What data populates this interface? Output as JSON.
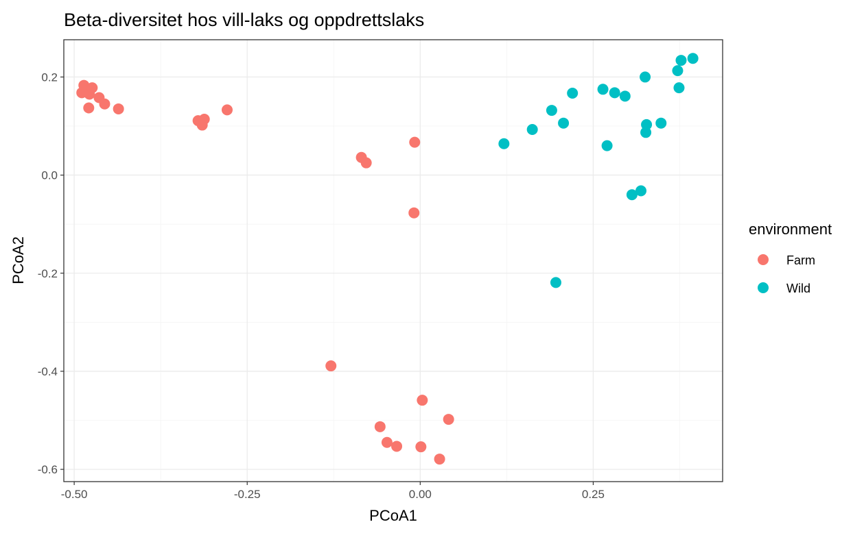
{
  "chart_data": {
    "type": "scatter",
    "title": "Beta-diversitet hos vill-laks og oppdrettslaks",
    "xlabel": "PCoA1",
    "ylabel": "PCoA2",
    "xlim": [
      -0.515,
      0.437
    ],
    "ylim": [
      -0.625,
      0.276
    ],
    "x_ticks": [
      -0.5,
      -0.25,
      0.0,
      0.25
    ],
    "x_tick_labels": [
      "-0.50",
      "-0.25",
      "0.00",
      "0.25"
    ],
    "y_ticks": [
      0.2,
      0.0,
      -0.2,
      -0.4,
      -0.6
    ],
    "y_tick_labels": [
      "0.2",
      "0.0",
      "-0.2",
      "-0.4",
      "-0.6"
    ],
    "x_minor": [
      -0.375,
      -0.125,
      0.125,
      0.375
    ],
    "y_minor": [
      0.1,
      -0.1,
      -0.3,
      -0.5
    ],
    "grid": true,
    "legend": {
      "title": "environment",
      "position": "right"
    },
    "series": [
      {
        "name": "Farm",
        "color": "#F8766D",
        "points": [
          [
            -0.486,
            0.183
          ],
          [
            -0.489,
            0.168
          ],
          [
            -0.482,
            0.172
          ],
          [
            -0.478,
            0.165
          ],
          [
            -0.474,
            0.178
          ],
          [
            -0.464,
            0.158
          ],
          [
            -0.456,
            0.145
          ],
          [
            -0.479,
            0.137
          ],
          [
            -0.436,
            0.135
          ],
          [
            -0.321,
            0.111
          ],
          [
            -0.317,
            0.108
          ],
          [
            -0.312,
            0.114
          ],
          [
            -0.315,
            0.102
          ],
          [
            -0.279,
            0.133
          ],
          [
            -0.008,
            0.067
          ],
          [
            -0.085,
            0.036
          ],
          [
            -0.078,
            0.025
          ],
          [
            -0.009,
            -0.077
          ],
          [
            -0.129,
            -0.389
          ],
          [
            0.003,
            -0.459
          ],
          [
            0.041,
            -0.498
          ],
          [
            -0.058,
            -0.513
          ],
          [
            -0.048,
            -0.545
          ],
          [
            -0.034,
            -0.553
          ],
          [
            0.001,
            -0.554
          ],
          [
            0.028,
            -0.579
          ]
        ]
      },
      {
        "name": "Wild",
        "color": "#00BFC4",
        "points": [
          [
            0.394,
            0.238
          ],
          [
            0.377,
            0.234
          ],
          [
            0.372,
            0.213
          ],
          [
            0.325,
            0.2
          ],
          [
            0.374,
            0.178
          ],
          [
            0.264,
            0.175
          ],
          [
            0.281,
            0.168
          ],
          [
            0.296,
            0.161
          ],
          [
            0.22,
            0.167
          ],
          [
            0.19,
            0.132
          ],
          [
            0.207,
            0.106
          ],
          [
            0.162,
            0.093
          ],
          [
            0.348,
            0.106
          ],
          [
            0.327,
            0.103
          ],
          [
            0.326,
            0.087
          ],
          [
            0.121,
            0.064
          ],
          [
            0.27,
            0.06
          ],
          [
            0.319,
            -0.032
          ],
          [
            0.306,
            -0.04
          ],
          [
            0.196,
            -0.219
          ]
        ]
      }
    ]
  }
}
